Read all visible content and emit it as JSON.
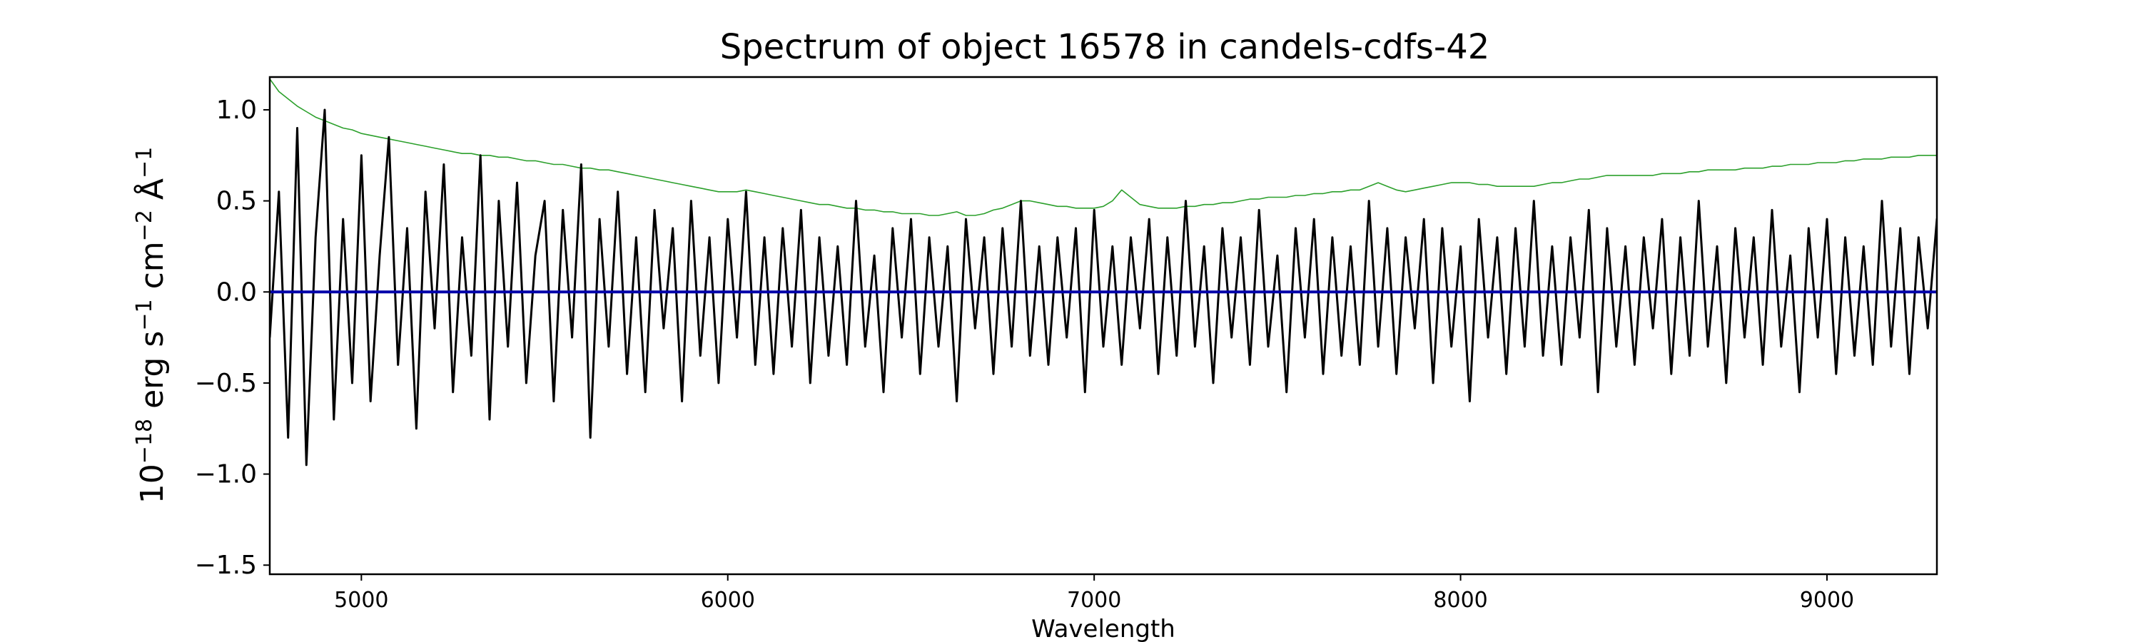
{
  "chart_data": {
    "type": "line",
    "title": "Spectrum of object 16578 in candels-cdfs-42",
    "xlabel": "Wavelength",
    "ylabel": {
      "base": "10",
      "exp1": "−18",
      "erg": " erg s",
      "exp2": "−1",
      "cm": " cm",
      "exp3": "−2",
      "ang": " Å",
      "exp4": "−1"
    },
    "xlim": [
      4750,
      9300
    ],
    "ylim": [
      -1.55,
      1.18
    ],
    "xticks": [
      5000,
      6000,
      7000,
      8000,
      9000
    ],
    "xtick_labels": [
      "5000",
      "6000",
      "7000",
      "8000",
      "9000"
    ],
    "yticks": [
      1.0,
      0.5,
      0.0,
      -0.5,
      -1.0,
      -1.5
    ],
    "ytick_labels": [
      "1.0",
      "0.5",
      "0.0",
      "−0.5",
      "−1.0",
      "−1.5"
    ],
    "grid": false,
    "colors": {
      "flux": "#000000",
      "noise": "#2ca02c",
      "zero_line": "#0000aa"
    },
    "series": [
      {
        "key": "flux",
        "x_start": 4750,
        "x_step": 25,
        "values": [
          -0.25,
          0.55,
          -0.8,
          0.9,
          -0.95,
          0.3,
          1.0,
          -0.7,
          0.4,
          -0.5,
          0.75,
          -0.6,
          0.2,
          0.85,
          -0.4,
          0.35,
          -0.75,
          0.55,
          -0.2,
          0.7,
          -0.55,
          0.3,
          -0.35,
          0.75,
          -0.7,
          0.5,
          -0.3,
          0.6,
          -0.5,
          0.2,
          0.5,
          -0.6,
          0.45,
          -0.25,
          0.7,
          -0.8,
          0.4,
          -0.3,
          0.55,
          -0.45,
          0.3,
          -0.55,
          0.45,
          -0.2,
          0.35,
          -0.6,
          0.5,
          -0.35,
          0.3,
          -0.5,
          0.4,
          -0.25,
          0.55,
          -0.4,
          0.3,
          -0.45,
          0.35,
          -0.3,
          0.45,
          -0.5,
          0.3,
          -0.35,
          0.25,
          -0.4,
          0.5,
          -0.3,
          0.2,
          -0.55,
          0.35,
          -0.25,
          0.4,
          -0.45,
          0.3,
          -0.3,
          0.25,
          -0.6,
          0.4,
          -0.2,
          0.3,
          -0.45,
          0.35,
          -0.3,
          0.5,
          -0.35,
          0.25,
          -0.4,
          0.3,
          -0.25,
          0.35,
          -0.55,
          0.45,
          -0.3,
          0.25,
          -0.4,
          0.3,
          -0.2,
          0.4,
          -0.45,
          0.3,
          -0.35,
          0.5,
          -0.3,
          0.25,
          -0.5,
          0.35,
          -0.25,
          0.3,
          -0.4,
          0.45,
          -0.3,
          0.2,
          -0.55,
          0.35,
          -0.25,
          0.4,
          -0.45,
          0.3,
          -0.35,
          0.25,
          -0.4,
          0.5,
          -0.3,
          0.35,
          -0.45,
          0.3,
          -0.2,
          0.4,
          -0.5,
          0.35,
          -0.3,
          0.25,
          -0.6,
          0.4,
          -0.25,
          0.3,
          -0.45,
          0.35,
          -0.3,
          0.5,
          -0.35,
          0.25,
          -0.4,
          0.3,
          -0.25,
          0.45,
          -0.55,
          0.35,
          -0.3,
          0.25,
          -0.4,
          0.3,
          -0.2,
          0.4,
          -0.45,
          0.3,
          -0.35,
          0.5,
          -0.3,
          0.25,
          -0.5,
          0.35,
          -0.25,
          0.3,
          -0.4,
          0.45,
          -0.3,
          0.2,
          -0.55,
          0.35,
          -0.25,
          0.4,
          -0.45,
          0.3,
          -0.35,
          0.25,
          -0.4,
          0.5,
          -0.3,
          0.35,
          -0.45,
          0.3,
          -0.2,
          0.4,
          -0.5,
          0.35
        ]
      },
      {
        "key": "noise",
        "x_start": 4750,
        "x_step": 25,
        "values": [
          1.17,
          1.1,
          1.06,
          1.02,
          0.99,
          0.96,
          0.94,
          0.92,
          0.9,
          0.89,
          0.87,
          0.86,
          0.85,
          0.84,
          0.83,
          0.82,
          0.81,
          0.8,
          0.79,
          0.78,
          0.77,
          0.76,
          0.76,
          0.75,
          0.75,
          0.74,
          0.74,
          0.73,
          0.72,
          0.72,
          0.71,
          0.7,
          0.7,
          0.69,
          0.68,
          0.68,
          0.67,
          0.67,
          0.66,
          0.65,
          0.64,
          0.63,
          0.62,
          0.61,
          0.6,
          0.59,
          0.58,
          0.57,
          0.56,
          0.55,
          0.55,
          0.55,
          0.56,
          0.55,
          0.54,
          0.53,
          0.52,
          0.51,
          0.5,
          0.49,
          0.48,
          0.48,
          0.47,
          0.46,
          0.46,
          0.45,
          0.45,
          0.44,
          0.44,
          0.43,
          0.43,
          0.43,
          0.42,
          0.42,
          0.43,
          0.44,
          0.42,
          0.42,
          0.43,
          0.45,
          0.46,
          0.48,
          0.5,
          0.5,
          0.49,
          0.48,
          0.47,
          0.47,
          0.46,
          0.46,
          0.46,
          0.47,
          0.5,
          0.56,
          0.52,
          0.48,
          0.47,
          0.46,
          0.46,
          0.46,
          0.47,
          0.47,
          0.48,
          0.48,
          0.49,
          0.49,
          0.5,
          0.51,
          0.51,
          0.52,
          0.52,
          0.52,
          0.53,
          0.53,
          0.54,
          0.54,
          0.55,
          0.55,
          0.56,
          0.56,
          0.58,
          0.6,
          0.58,
          0.56,
          0.55,
          0.56,
          0.57,
          0.58,
          0.59,
          0.6,
          0.6,
          0.6,
          0.59,
          0.59,
          0.58,
          0.58,
          0.58,
          0.58,
          0.58,
          0.59,
          0.6,
          0.6,
          0.61,
          0.62,
          0.62,
          0.63,
          0.64,
          0.64,
          0.64,
          0.64,
          0.64,
          0.64,
          0.65,
          0.65,
          0.65,
          0.66,
          0.66,
          0.67,
          0.67,
          0.67,
          0.67,
          0.68,
          0.68,
          0.68,
          0.69,
          0.69,
          0.7,
          0.7,
          0.7,
          0.71,
          0.71,
          0.71,
          0.72,
          0.72,
          0.73,
          0.73,
          0.73,
          0.74,
          0.74,
          0.74,
          0.75,
          0.75,
          0.75,
          0.76,
          0.76,
          0.76,
          0.75
        ]
      },
      {
        "key": "zero_line",
        "x_start": 4750,
        "x_step": 4550,
        "values": [
          0.0,
          0.0
        ]
      }
    ]
  }
}
